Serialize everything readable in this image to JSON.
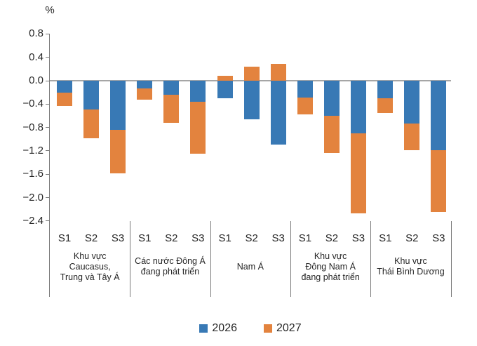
{
  "chart": {
    "percent_label": "%",
    "legend": [
      {
        "name": "2026",
        "color": "#3879b5"
      },
      {
        "name": "2027",
        "color": "#e3833e"
      }
    ]
  },
  "chart_data": {
    "type": "bar",
    "subtype": "stacked",
    "title": "",
    "ylabel": "%",
    "ylim": [
      -2.4,
      0.8
    ],
    "yticks": [
      0.8,
      0.4,
      0.0,
      -0.4,
      -0.8,
      -1.2,
      -1.6,
      -2.0,
      -2.4
    ],
    "grid": false,
    "legend_position": "bottom",
    "series_names": [
      "2026",
      "2027"
    ],
    "colors": {
      "2026": "#3879b5",
      "2027": "#e3833e"
    },
    "scenario_labels": [
      "S1",
      "S2",
      "S3"
    ],
    "groups": [
      {
        "label_lines": [
          "Khu vực",
          "Caucasus,",
          "Trung và Tây Á"
        ],
        "bars": [
          {
            "label": "S1",
            "2026": -0.21,
            "2027": -0.22
          },
          {
            "label": "S2",
            "2026": -0.49,
            "2027": -0.5
          },
          {
            "label": "S3",
            "2026": -0.84,
            "2027": -0.74
          }
        ]
      },
      {
        "label_lines": [
          "Các nước Đông Á",
          "đang phát triển"
        ],
        "bars": [
          {
            "label": "S1",
            "2026": -0.13,
            "2027": -0.2
          },
          {
            "label": "S2",
            "2026": -0.24,
            "2027": -0.48
          },
          {
            "label": "S3",
            "2026": -0.36,
            "2027": -0.89
          }
        ]
      },
      {
        "label_lines": [
          "Nam Á"
        ],
        "bars": [
          {
            "label": "S1",
            "2026": -0.3,
            "2027": 0.09
          },
          {
            "label": "S2",
            "2026": -0.66,
            "2027": 0.24
          },
          {
            "label": "S3",
            "2026": -1.09,
            "2027": 0.29
          }
        ]
      },
      {
        "label_lines": [
          "Khu vực",
          "Đông Nam Á",
          "đang phát triển"
        ],
        "bars": [
          {
            "label": "S1",
            "2026": -0.29,
            "2027": -0.29
          },
          {
            "label": "S2",
            "2026": -0.6,
            "2027": -0.64
          },
          {
            "label": "S3",
            "2026": -0.9,
            "2027": -1.37
          }
        ]
      },
      {
        "label_lines": [
          "Khu vực",
          "Thái Bình Dương"
        ],
        "bars": [
          {
            "label": "S1",
            "2026": -0.3,
            "2027": -0.25
          },
          {
            "label": "S2",
            "2026": -0.73,
            "2027": -0.46
          },
          {
            "label": "S3",
            "2026": -1.19,
            "2027": -1.05
          }
        ]
      }
    ]
  }
}
